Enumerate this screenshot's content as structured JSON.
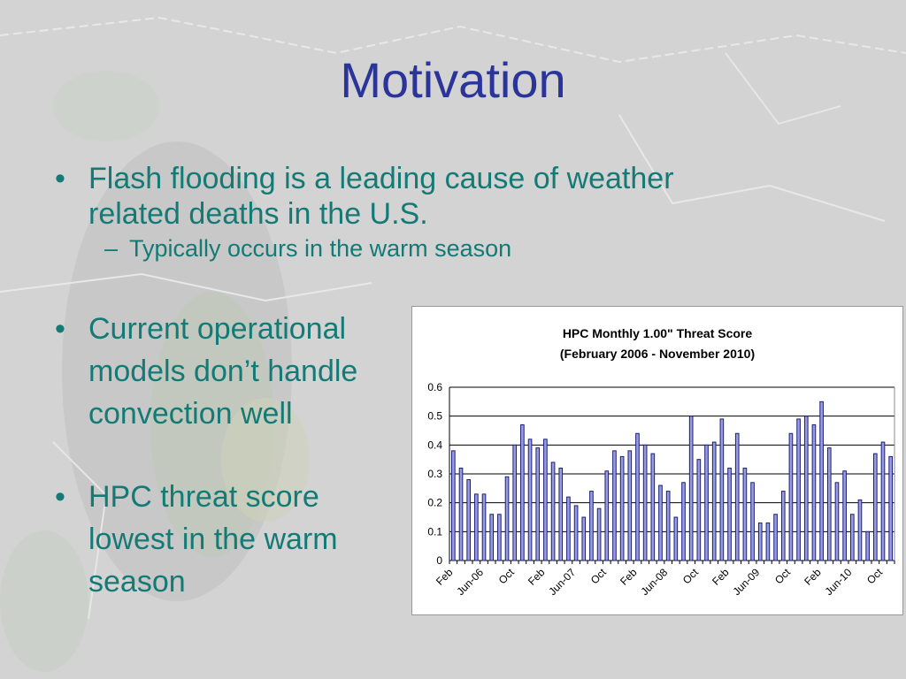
{
  "slide": {
    "title": "Motivation",
    "bullets": [
      {
        "marker": "•",
        "line1": "Flash flooding is a leading cause of weather",
        "line2": "related deaths in the U.S."
      },
      {
        "marker": "•",
        "line1": "Current operational",
        "line2": "models don’t handle",
        "line3": "convection well"
      },
      {
        "marker": "•",
        "line1": "HPC threat score",
        "line2": "lowest in the warm",
        "line3": "season"
      }
    ],
    "sub_bullet": {
      "marker": "–",
      "text": "Typically occurs in the warm season"
    }
  },
  "colors": {
    "title": "#2b3599",
    "body_text": "#137a76",
    "bar_fill": "#9a9de0",
    "bar_stroke": "#1b1f7a"
  },
  "chart_data": {
    "type": "bar",
    "title": "HPC Monthly 1.00\" Threat Score",
    "subtitle": "(February 2006 - November 2010)",
    "xlabel": "",
    "ylabel": "",
    "ylim": [
      0,
      0.6
    ],
    "yticks": [
      0,
      0.1,
      0.2,
      0.3,
      0.4,
      0.5,
      0.6
    ],
    "grid": true,
    "x_tick_labels": [
      {
        "index": 0,
        "label": "Feb"
      },
      {
        "index": 4,
        "label": "Jun-06"
      },
      {
        "index": 8,
        "label": "Oct"
      },
      {
        "index": 12,
        "label": "Feb"
      },
      {
        "index": 16,
        "label": "Jun-07"
      },
      {
        "index": 20,
        "label": "Oct"
      },
      {
        "index": 24,
        "label": "Feb"
      },
      {
        "index": 28,
        "label": "Jun-08"
      },
      {
        "index": 32,
        "label": "Oct"
      },
      {
        "index": 36,
        "label": "Feb"
      },
      {
        "index": 40,
        "label": "Jun-09"
      },
      {
        "index": 44,
        "label": "Oct"
      },
      {
        "index": 48,
        "label": "Feb"
      },
      {
        "index": 52,
        "label": "Jun-10"
      },
      {
        "index": 56,
        "label": "Oct"
      }
    ],
    "values": [
      0.38,
      0.32,
      0.28,
      0.23,
      0.23,
      0.16,
      0.16,
      0.29,
      0.4,
      0.47,
      0.42,
      0.39,
      0.42,
      0.34,
      0.32,
      0.22,
      0.19,
      0.15,
      0.24,
      0.18,
      0.31,
      0.38,
      0.36,
      0.38,
      0.44,
      0.4,
      0.37,
      0.26,
      0.24,
      0.15,
      0.27,
      0.5,
      0.35,
      0.4,
      0.41,
      0.49,
      0.32,
      0.44,
      0.32,
      0.27,
      0.13,
      0.13,
      0.16,
      0.24,
      0.44,
      0.49,
      0.5,
      0.47,
      0.55,
      0.39,
      0.27,
      0.31,
      0.16,
      0.21,
      0.1,
      0.37,
      0.41,
      0.36
    ]
  }
}
